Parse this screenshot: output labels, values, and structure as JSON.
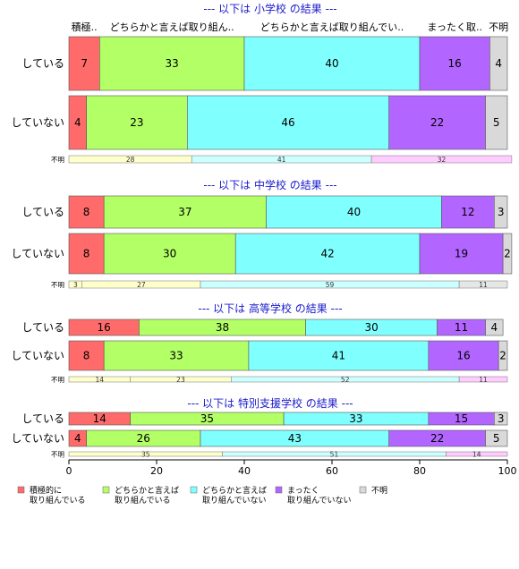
{
  "chart_data": {
    "type": "bar",
    "orientation": "horizontal",
    "stacked": true,
    "xlim": [
      0,
      100
    ],
    "xticks": [
      0,
      20,
      40,
      60,
      80,
      100
    ],
    "category_headers": [
      "積極..",
      "どちらかと言えば取り組ん..",
      "どちらかと言えば取り組んでい..",
      "まったく取..",
      "不明"
    ],
    "colors": [
      "#ff6b6b",
      "#b3ff66",
      "#80ffff",
      "#b266ff",
      "#d9d9d9"
    ],
    "minor_colors": [
      "#ffffcc",
      "#ccffff",
      "#ffccff",
      "#e6e6e6"
    ],
    "legend": [
      {
        "line1": "積極的に",
        "line2": "取り組んでいる",
        "color": "#ff6b6b"
      },
      {
        "line1": "どちらかと言えば",
        "line2": "取り組んでいる",
        "color": "#b3ff66"
      },
      {
        "line1": "どちらかと言えば",
        "line2": "取り組んでいない",
        "color": "#80ffff"
      },
      {
        "line1": "まったく",
        "line2": "取り組んでいない",
        "color": "#b266ff"
      },
      {
        "line1": "不明",
        "line2": "",
        "color": "#d9d9d9"
      }
    ],
    "sections": [
      {
        "title": "--- 以下は 小学校 の結果 ---",
        "rows": [
          {
            "label": "している",
            "values": [
              7,
              33,
              40,
              16,
              4
            ]
          },
          {
            "label": "していない",
            "values": [
              4,
              23,
              46,
              22,
              5
            ]
          }
        ],
        "minor": {
          "label": "不明",
          "values": [
            0,
            28,
            41,
            32,
            0
          ],
          "labels": [
            "",
            "28",
            "41",
            "32",
            ""
          ]
        }
      },
      {
        "title": "--- 以下は 中学校 の結果 ---",
        "rows": [
          {
            "label": "している",
            "values": [
              8,
              37,
              40,
              12,
              3
            ]
          },
          {
            "label": "していない",
            "values": [
              8,
              30,
              42,
              19,
              2
            ]
          }
        ],
        "minor": {
          "label": "不明",
          "values": [
            3,
            27,
            59,
            0,
            11
          ],
          "labels": [
            "3",
            "27",
            "59",
            "",
            "11"
          ]
        }
      },
      {
        "title": "--- 以下は 高等学校 の結果 ---",
        "rows": [
          {
            "label": "している",
            "values": [
              16,
              38,
              30,
              11,
              4
            ]
          },
          {
            "label": "していない",
            "values": [
              8,
              33,
              41,
              16,
              2
            ]
          }
        ],
        "minor": {
          "label": "不明",
          "values": [
            14,
            23,
            52,
            11,
            0
          ],
          "labels": [
            "14",
            "23",
            "52",
            "11",
            ""
          ]
        }
      },
      {
        "title": "--- 以下は 特別支援学校 の結果 ---",
        "rows": [
          {
            "label": "している",
            "values": [
              14,
              35,
              33,
              15,
              3
            ]
          },
          {
            "label": "していない",
            "values": [
              4,
              26,
              43,
              22,
              5
            ]
          }
        ],
        "minor": {
          "label": "不明",
          "values": [
            0,
            35,
            51,
            14,
            0
          ],
          "labels": [
            "",
            "35",
            "51",
            "14",
            ""
          ]
        }
      }
    ]
  }
}
